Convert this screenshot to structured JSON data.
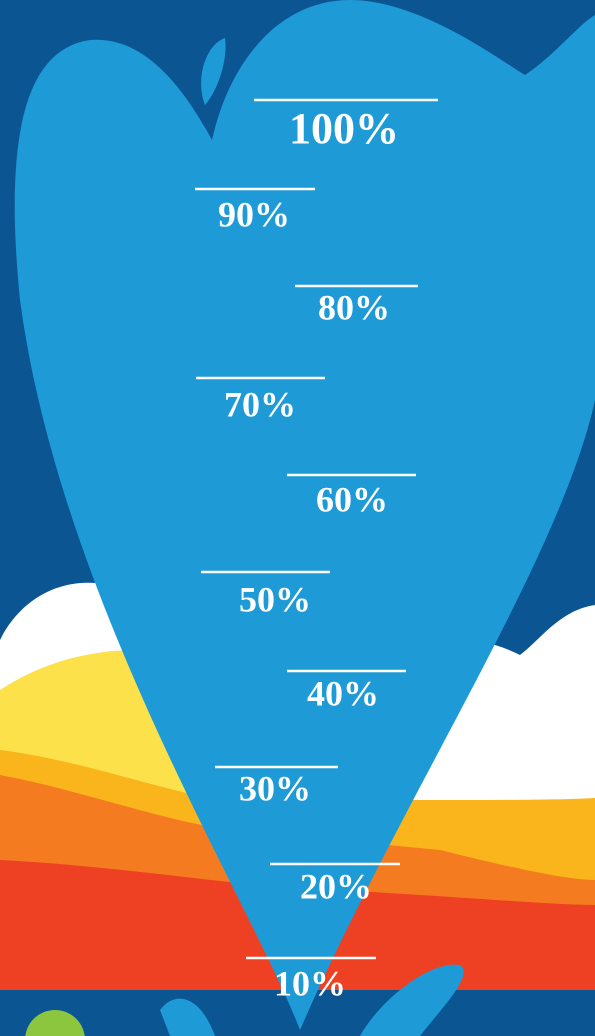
{
  "levels": [
    "100%",
    "90%",
    "80%",
    "70%",
    "60%",
    "50%",
    "40%",
    "30%",
    "20%",
    "10%"
  ]
}
